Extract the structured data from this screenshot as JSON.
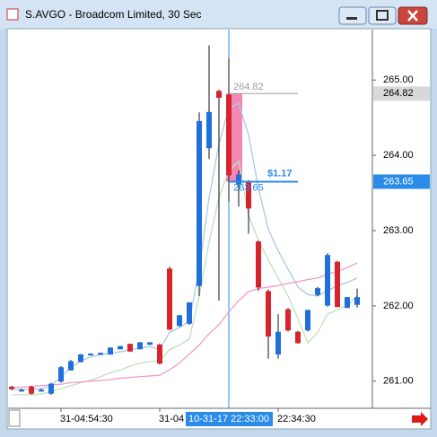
{
  "window": {
    "title": "S.AVGO - Broadcom Limited, 30 Sec"
  },
  "chart_data": {
    "type": "candlestick",
    "categories": [
      null,
      null,
      null,
      null,
      null,
      "31-04:54:30",
      null,
      null,
      null,
      null,
      null,
      null,
      null,
      null,
      null,
      "31-04",
      null,
      null,
      null,
      null,
      null,
      null,
      "10-31-17 22:33:00",
      null,
      null,
      null,
      null,
      "22:34:30",
      null,
      null,
      null,
      null,
      null,
      null,
      null,
      null
    ],
    "open": [
      260.92,
      260.88,
      260.92,
      260.88,
      260.84,
      261.0,
      261.15,
      261.26,
      261.35,
      261.36,
      261.36,
      261.43,
      261.49,
      261.43,
      261.49,
      261.48,
      262.49,
      261.74,
      261.77,
      262.27,
      264.1,
      264.85,
      264.8,
      263.62,
      263.65,
      262.85,
      262.19,
      261.36,
      261.95,
      261.65,
      261.68,
      262.15,
      262.01,
      262.58,
      261.98,
      262.02
    ],
    "high": [
      260.94,
      260.9,
      260.94,
      260.9,
      260.98,
      261.2,
      261.28,
      261.36,
      261.37,
      261.38,
      261.45,
      261.47,
      261.5,
      261.52,
      261.52,
      261.5,
      262.52,
      261.88,
      262.05,
      264.57,
      265.46,
      264.87,
      265.29,
      263.8,
      263.67,
      262.87,
      262.22,
      261.89,
      261.97,
      261.67,
      261.95,
      262.25,
      262.7,
      262.6,
      262.12,
      262.23
    ],
    "low": [
      260.88,
      260.86,
      260.82,
      260.86,
      260.82,
      260.98,
      261.14,
      261.25,
      261.34,
      261.35,
      261.35,
      261.42,
      261.39,
      261.42,
      261.48,
      261.22,
      261.68,
      261.72,
      261.75,
      262.13,
      263.95,
      262.07,
      263.38,
      263.32,
      262.96,
      262.2,
      261.3,
      261.3,
      261.66,
      261.5,
      261.66,
      262.13,
      261.99,
      261.99,
      261.97,
      261.98
    ],
    "close": [
      260.9,
      260.88,
      260.84,
      260.88,
      260.96,
      261.18,
      261.26,
      261.35,
      261.36,
      261.37,
      261.44,
      261.46,
      261.4,
      261.51,
      261.51,
      261.24,
      261.69,
      261.87,
      262.04,
      264.45,
      264.57,
      264.77,
      263.74,
      263.74,
      263.3,
      262.25,
      261.6,
      261.65,
      261.68,
      261.51,
      261.94,
      262.23,
      262.67,
      261.99,
      262.11,
      262.11
    ],
    "up_color": "#1f6fdc",
    "down_color": "#d8222c",
    "lines": [
      {
        "color": "#a9c9e6",
        "values": [
          260.89,
          260.89,
          260.89,
          260.9,
          260.94,
          261.06,
          261.18,
          261.27,
          261.32,
          261.35,
          261.37,
          261.39,
          261.42,
          261.44,
          261.46,
          261.42,
          261.65,
          261.71,
          261.8,
          262.49,
          263.44,
          264.15,
          264.63,
          264.69,
          264.27,
          263.56,
          263.02,
          262.73,
          262.49,
          262.25,
          262.15,
          262.13,
          262.2,
          262.27,
          262.31,
          262.37
        ]
      },
      {
        "color": "#bfe0bf",
        "values": [
          260.82,
          260.82,
          260.82,
          260.83,
          260.86,
          260.9,
          260.94,
          260.98,
          261.01,
          261.06,
          261.11,
          261.15,
          261.2,
          261.24,
          261.26,
          261.27,
          261.42,
          261.48,
          261.56,
          262.13,
          262.85,
          263.44,
          263.8,
          263.92,
          263.2,
          262.87,
          262.61,
          262.37,
          262.13,
          261.83,
          261.51,
          261.65,
          261.89,
          261.95,
          262.01,
          262.13
        ]
      },
      {
        "color": "#f29ac8",
        "values": [
          260.92,
          260.92,
          260.93,
          260.94,
          260.95,
          260.96,
          260.98,
          260.99,
          261.0,
          261.01,
          261.02,
          261.04,
          261.05,
          261.06,
          261.07,
          261.08,
          261.15,
          261.24,
          261.36,
          261.48,
          261.63,
          261.75,
          261.92,
          262.07,
          262.19,
          262.23,
          262.25,
          262.27,
          262.3,
          262.32,
          262.35,
          262.37,
          262.42,
          262.46,
          262.51,
          262.57
        ]
      }
    ],
    "ylim": [
      260.64,
      265.67
    ],
    "yticks": [
      {
        "value": 261,
        "label": "261.00"
      },
      {
        "value": 262,
        "label": "262.00"
      },
      {
        "value": 263,
        "label": "263.00"
      },
      {
        "value": 264,
        "label": "264.00"
      },
      {
        "value": 265,
        "label": "265.00"
      }
    ],
    "crosshair_index": 22,
    "levels": [
      {
        "value": 264.82,
        "label": "264.82",
        "color": "#a0a0a0"
      },
      {
        "value": 263.65,
        "label": "263.65",
        "color": "#2a8be8"
      }
    ],
    "measure": {
      "value": 1.17,
      "label": "$1.17"
    }
  }
}
